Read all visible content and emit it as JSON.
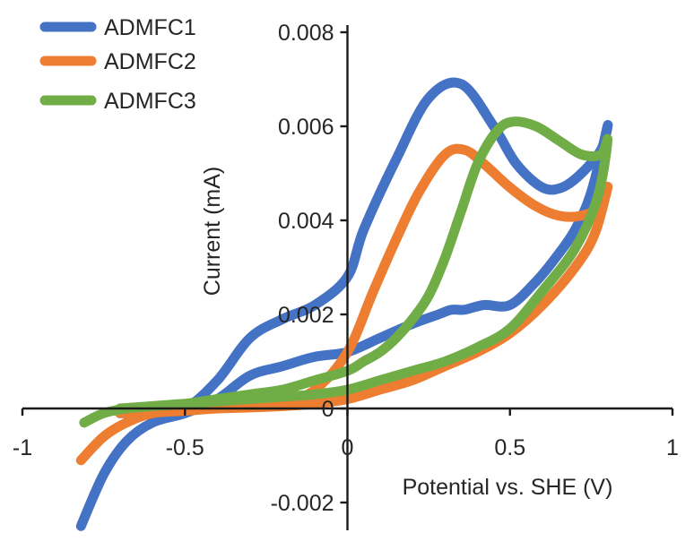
{
  "chart_data": {
    "type": "line",
    "title": "",
    "xlabel": "Potential vs. SHE (V)",
    "ylabel": "Current (mA)",
    "xlim": [
      -1,
      1
    ],
    "ylim": [
      -0.0025,
      0.008
    ],
    "grid": false,
    "legend": "top-left",
    "x_ticks": [
      -1,
      -0.5,
      0,
      0.5,
      1
    ],
    "x_tick_labels": [
      "-1",
      "-0.5",
      "0",
      "0.5",
      "1"
    ],
    "y_ticks": [
      -0.002,
      0,
      0.002,
      0.004,
      0.006,
      0.008
    ],
    "y_tick_labels": [
      "-0.002",
      "0",
      "0.002",
      "0.004",
      "0.006",
      "0.008"
    ],
    "series": [
      {
        "name": "ADMFC1",
        "color": "#4472C4",
        "x": [
          -0.82,
          -0.75,
          -0.68,
          -0.6,
          -0.5,
          -0.4,
          -0.3,
          -0.2,
          -0.1,
          0.0,
          0.1,
          0.2,
          0.28,
          0.32,
          0.36,
          0.42,
          0.5,
          0.58,
          0.64,
          0.7,
          0.75,
          0.8,
          0.78,
          0.72,
          0.66,
          0.6,
          0.52,
          0.45,
          0.35,
          0.25,
          0.15,
          0.05,
          0.0,
          -0.1,
          -0.2,
          -0.3,
          -0.4,
          -0.5,
          -0.6,
          -0.7
        ],
        "y": [
          -0.0025,
          -0.0014,
          -0.0007,
          -0.0003,
          -0.0001,
          0.0002,
          0.0007,
          0.0009,
          0.0011,
          0.0012,
          0.0015,
          0.0018,
          0.002,
          0.0021,
          0.0021,
          0.0022,
          0.0022,
          0.0027,
          0.0032,
          0.0038,
          0.0046,
          0.006,
          0.0055,
          0.005,
          0.0047,
          0.0047,
          0.0052,
          0.006,
          0.0069,
          0.0066,
          0.0053,
          0.0038,
          0.0028,
          0.0022,
          0.0019,
          0.0015,
          0.0006,
          0.0,
          -0.0001,
          -0.0001
        ]
      },
      {
        "name": "ADMFC2",
        "color": "#ED7D31",
        "x": [
          -0.82,
          -0.75,
          -0.68,
          -0.6,
          -0.5,
          -0.4,
          -0.3,
          -0.2,
          -0.1,
          0.0,
          0.1,
          0.2,
          0.3,
          0.4,
          0.5,
          0.6,
          0.7,
          0.76,
          0.8,
          0.78,
          0.72,
          0.65,
          0.58,
          0.5,
          0.42,
          0.36,
          0.3,
          0.22,
          0.15,
          0.08,
          0.0,
          -0.1,
          -0.2,
          -0.3,
          -0.4,
          -0.5,
          -0.6,
          -0.7
        ],
        "y": [
          -0.0011,
          -0.0006,
          -0.0003,
          -0.0001,
          -5e-05,
          0.0,
          2e-05,
          5e-05,
          0.0001,
          0.0002,
          0.0004,
          0.0006,
          0.0009,
          0.0012,
          0.0016,
          0.0022,
          0.003,
          0.0037,
          0.0047,
          0.0043,
          0.0041,
          0.0041,
          0.0043,
          0.0047,
          0.0052,
          0.0055,
          0.0054,
          0.0046,
          0.0036,
          0.0025,
          0.0012,
          0.0004,
          0.0001,
          5e-05,
          2e-05,
          0.0,
          -5e-05,
          -0.0001
        ]
      },
      {
        "name": "ADMFC3",
        "color": "#70AD47",
        "x": [
          -0.81,
          -0.75,
          -0.68,
          -0.6,
          -0.5,
          -0.4,
          -0.3,
          -0.2,
          -0.1,
          0.0,
          0.1,
          0.2,
          0.3,
          0.4,
          0.5,
          0.6,
          0.7,
          0.77,
          0.8,
          0.78,
          0.72,
          0.65,
          0.58,
          0.51,
          0.46,
          0.4,
          0.35,
          0.3,
          0.25,
          0.2,
          0.15,
          0.1,
          0.05,
          0.0,
          -0.1,
          -0.2,
          -0.3,
          -0.4,
          -0.5,
          -0.6,
          -0.7
        ],
        "y": [
          -0.0003,
          -0.0001,
          0.0,
          5e-05,
          0.0001,
          0.00015,
          0.0002,
          0.00025,
          0.0003,
          0.0004,
          0.0006,
          0.0008,
          0.001,
          0.0013,
          0.0017,
          0.0025,
          0.0034,
          0.0045,
          0.0057,
          0.0054,
          0.0054,
          0.0057,
          0.006,
          0.0061,
          0.0059,
          0.0052,
          0.0042,
          0.0032,
          0.0024,
          0.0019,
          0.0015,
          0.0012,
          0.001,
          0.0008,
          0.0006,
          0.0004,
          0.0003,
          0.0002,
          0.0001,
          5e-05,
          0.0
        ]
      }
    ]
  }
}
